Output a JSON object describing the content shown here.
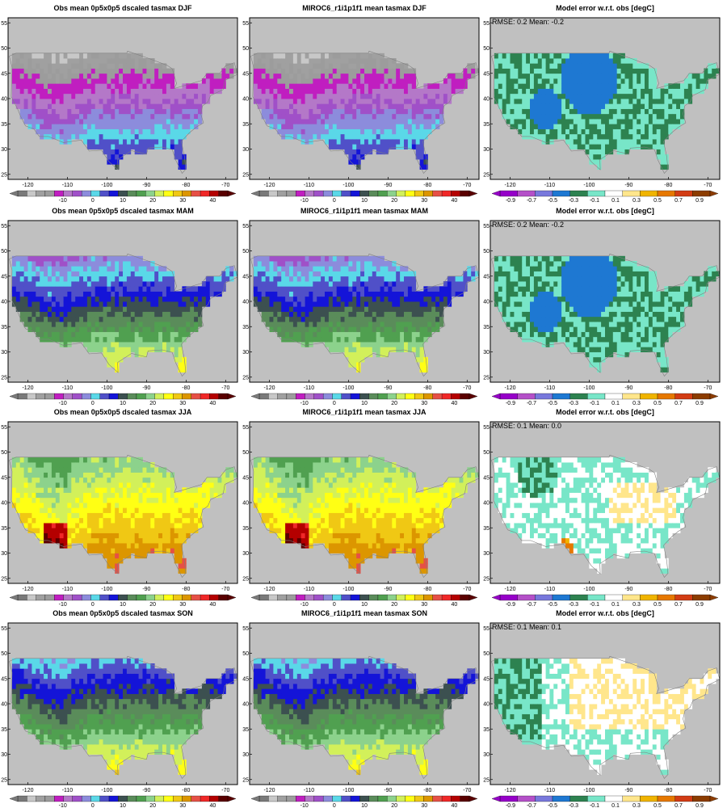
{
  "colors": {
    "temp_palette": [
      "#7a7a7a",
      "#c8c8c8",
      "#a0a0a0",
      "#9c9c9c",
      "#c01ec0",
      "#b478c8",
      "#a050c8",
      "#8c8cdc",
      "#5ad8e8",
      "#5050c8",
      "#1414d8",
      "#3c5050",
      "#5a8c5a",
      "#50a050",
      "#8cd28c",
      "#d2f05a",
      "#ffff14",
      "#f0c814",
      "#dc9600",
      "#e65046",
      "#f02828",
      "#b40000",
      "#5a0000"
    ],
    "err_palette": [
      "#9600c8",
      "#b450c8",
      "#7878dc",
      "#1e78d2",
      "#2d8250",
      "#78e6c8",
      "#ffffff",
      "#ffe68c",
      "#f0b400",
      "#e67800",
      "#d23c14",
      "#8c3c00"
    ],
    "land_grey": "#c0c0c0",
    "outline": "#808080"
  },
  "chart_data": [
    {
      "type": "heatmap",
      "title": "Obs mean 0p5x0p5 dscaled tasmax DJF",
      "season": "DJF",
      "kind": "temp",
      "x_ticks": [
        "-120",
        "-110",
        "-100",
        "-90",
        "-80",
        "-70"
      ],
      "y_ticks": [
        "25",
        "30",
        "35",
        "40",
        "45",
        "50",
        "55"
      ],
      "colorbar_labels": [
        "-10",
        "0",
        "10",
        "20",
        "30",
        "40"
      ],
      "xlim": [
        -125,
        -67
      ],
      "ylim": [
        24,
        56
      ]
    },
    {
      "type": "heatmap",
      "title": "MIROC6_r1i1p1f1 mean tasmax DJF",
      "season": "DJF",
      "kind": "temp",
      "x_ticks": [
        "-120",
        "-110",
        "-100",
        "-90",
        "-80",
        "-70"
      ],
      "y_ticks": [
        "25",
        "30",
        "35",
        "40",
        "45",
        "50",
        "55"
      ],
      "colorbar_labels": [
        "-10",
        "0",
        "10",
        "20",
        "30",
        "40"
      ],
      "xlim": [
        -125,
        -67
      ],
      "ylim": [
        24,
        56
      ]
    },
    {
      "type": "heatmap",
      "title": "Model error w.r.t. obs [degC]",
      "season": "DJF",
      "kind": "err",
      "stats": "RMSE: 0.2  Mean: -0.2",
      "x_ticks": [
        "-120",
        "-110",
        "-100",
        "-90",
        "-80",
        "-70"
      ],
      "y_ticks": [
        "25",
        "30",
        "35",
        "40",
        "45",
        "50",
        "55"
      ],
      "colorbar_labels": [
        "-0.9",
        "-0.7",
        "-0.5",
        "-0.3",
        "-0.1",
        "0.1",
        "0.3",
        "0.5",
        "0.7",
        "0.9"
      ],
      "xlim": [
        -125,
        -67
      ],
      "ylim": [
        24,
        56
      ]
    },
    {
      "type": "heatmap",
      "title": "Obs mean 0p5x0p5 dscaled tasmax MAM",
      "season": "MAM",
      "kind": "temp",
      "x_ticks": [
        "-120",
        "-110",
        "-100",
        "-90",
        "-80",
        "-70"
      ],
      "y_ticks": [
        "25",
        "30",
        "35",
        "40",
        "45",
        "50",
        "55"
      ],
      "colorbar_labels": [
        "-10",
        "0",
        "10",
        "20",
        "30",
        "40"
      ],
      "xlim": [
        -125,
        -67
      ],
      "ylim": [
        24,
        56
      ]
    },
    {
      "type": "heatmap",
      "title": "MIROC6_r1i1p1f1 mean tasmax MAM",
      "season": "MAM",
      "kind": "temp",
      "x_ticks": [
        "-120",
        "-110",
        "-100",
        "-90",
        "-80",
        "-70"
      ],
      "y_ticks": [
        "25",
        "30",
        "35",
        "40",
        "45",
        "50",
        "55"
      ],
      "colorbar_labels": [
        "-10",
        "0",
        "10",
        "20",
        "30",
        "40"
      ],
      "xlim": [
        -125,
        -67
      ],
      "ylim": [
        24,
        56
      ]
    },
    {
      "type": "heatmap",
      "title": "Model error w.r.t. obs [degC]",
      "season": "MAM",
      "kind": "err",
      "stats": "RMSE: 0.2  Mean: -0.2",
      "x_ticks": [
        "-120",
        "-110",
        "-100",
        "-90",
        "-80",
        "-70"
      ],
      "y_ticks": [
        "25",
        "30",
        "35",
        "40",
        "45",
        "50",
        "55"
      ],
      "colorbar_labels": [
        "-0.9",
        "-0.7",
        "-0.5",
        "-0.3",
        "-0.1",
        "0.1",
        "0.3",
        "0.5",
        "0.7",
        "0.9"
      ],
      "xlim": [
        -125,
        -67
      ],
      "ylim": [
        24,
        56
      ]
    },
    {
      "type": "heatmap",
      "title": "Obs mean 0p5x0p5 dscaled tasmax JJA",
      "season": "JJA",
      "kind": "temp",
      "x_ticks": [
        "-120",
        "-110",
        "-100",
        "-90",
        "-80",
        "-70"
      ],
      "y_ticks": [
        "25",
        "30",
        "35",
        "40",
        "45",
        "50",
        "55"
      ],
      "colorbar_labels": [
        "-10",
        "0",
        "10",
        "20",
        "30",
        "40"
      ],
      "xlim": [
        -125,
        -67
      ],
      "ylim": [
        24,
        56
      ]
    },
    {
      "type": "heatmap",
      "title": "MIROC6_r1i1p1f1 mean tasmax JJA",
      "season": "JJA",
      "kind": "temp",
      "x_ticks": [
        "-120",
        "-110",
        "-100",
        "-90",
        "-80",
        "-70"
      ],
      "y_ticks": [
        "25",
        "30",
        "35",
        "40",
        "45",
        "50",
        "55"
      ],
      "colorbar_labels": [
        "-10",
        "0",
        "10",
        "20",
        "30",
        "40"
      ],
      "xlim": [
        -125,
        -67
      ],
      "ylim": [
        24,
        56
      ]
    },
    {
      "type": "heatmap",
      "title": "Model error w.r.t. obs [degC]",
      "season": "JJA",
      "kind": "err",
      "stats": "RMSE: 0.1  Mean: 0.0",
      "x_ticks": [
        "-120",
        "-110",
        "-100",
        "-90",
        "-80",
        "-70"
      ],
      "y_ticks": [
        "25",
        "30",
        "35",
        "40",
        "45",
        "50",
        "55"
      ],
      "colorbar_labels": [
        "-0.9",
        "-0.7",
        "-0.5",
        "-0.3",
        "-0.1",
        "0.1",
        "0.3",
        "0.5",
        "0.7",
        "0.9"
      ],
      "xlim": [
        -125,
        -67
      ],
      "ylim": [
        24,
        56
      ]
    },
    {
      "type": "heatmap",
      "title": "Obs mean 0p5x0p5 dscaled tasmax SON",
      "season": "SON",
      "kind": "temp",
      "x_ticks": [
        "-120",
        "-110",
        "-100",
        "-90",
        "-80",
        "-70"
      ],
      "y_ticks": [
        "25",
        "30",
        "35",
        "40",
        "45",
        "50",
        "55"
      ],
      "colorbar_labels": [
        "-10",
        "0",
        "10",
        "20",
        "30",
        "40"
      ],
      "xlim": [
        -125,
        -67
      ],
      "ylim": [
        24,
        56
      ]
    },
    {
      "type": "heatmap",
      "title": "MIROC6_r1i1p1f1 mean tasmax SON",
      "season": "SON",
      "kind": "temp",
      "x_ticks": [
        "-120",
        "-110",
        "-100",
        "-90",
        "-80",
        "-70"
      ],
      "y_ticks": [
        "25",
        "30",
        "35",
        "40",
        "45",
        "50",
        "55"
      ],
      "colorbar_labels": [
        "-10",
        "0",
        "10",
        "20",
        "30",
        "40"
      ],
      "xlim": [
        -125,
        -67
      ],
      "ylim": [
        24,
        56
      ]
    },
    {
      "type": "heatmap",
      "title": "Model error w.r.t. obs [degC]",
      "season": "SON",
      "kind": "err",
      "stats": "RMSE: 0.1  Mean: 0.1",
      "x_ticks": [
        "-120",
        "-110",
        "-100",
        "-90",
        "-80",
        "-70"
      ],
      "y_ticks": [
        "25",
        "30",
        "35",
        "40",
        "45",
        "50",
        "55"
      ],
      "colorbar_labels": [
        "-0.9",
        "-0.7",
        "-0.5",
        "-0.3",
        "-0.1",
        "0.1",
        "0.3",
        "0.5",
        "0.7",
        "0.9"
      ],
      "xlim": [
        -125,
        -67
      ],
      "ylim": [
        24,
        56
      ]
    }
  ]
}
